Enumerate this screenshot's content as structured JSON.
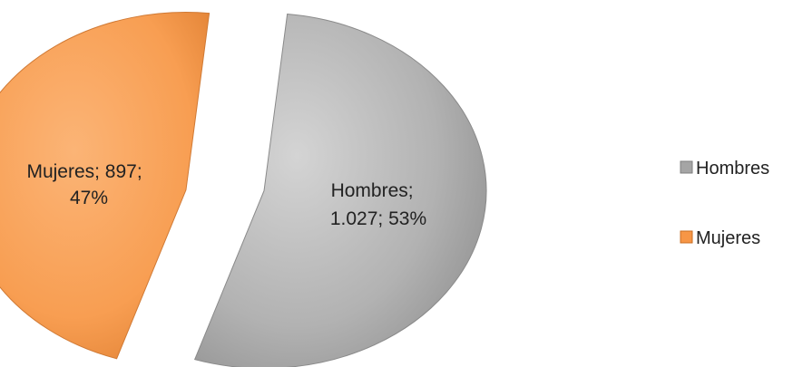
{
  "chart_data": {
    "type": "pie",
    "exploded": true,
    "legend_position": "right",
    "slices": [
      {
        "name": "Hombres",
        "value": 1027,
        "percent": 53,
        "color": "#A5A5A5",
        "label_lines": [
          "Hombres;",
          "1.027; 53%"
        ]
      },
      {
        "name": "Mujeres",
        "value": 897,
        "percent": 47,
        "color": "#F79646",
        "label_lines": [
          "Mujeres; 897;",
          "47%"
        ]
      }
    ],
    "legend": [
      "Hombres",
      "Mujeres"
    ]
  }
}
